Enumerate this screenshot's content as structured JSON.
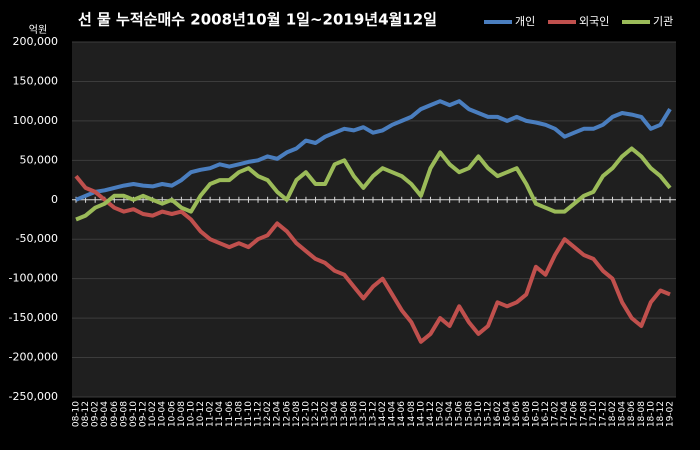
{
  "chart_data": {
    "type": "line",
    "title": "선 물  누적순매수 2008년10월 1일~2019년4월12일",
    "y_unit": "억원",
    "categories": [
      "08-10",
      "08-12",
      "09-02",
      "09-04",
      "09-06",
      "09-08",
      "09-10",
      "09-12",
      "10-02",
      "10-04",
      "10-06",
      "10-08",
      "10-10",
      "10-12",
      "11-02",
      "11-04",
      "11-06",
      "11-08",
      "11-10",
      "11-12",
      "12-02",
      "12-04",
      "12-06",
      "12-08",
      "12-10",
      "12-12",
      "13-02",
      "13-04",
      "13-06",
      "13-08",
      "13-10",
      "13-12",
      "14-02",
      "14-04",
      "14-06",
      "14-08",
      "14-10",
      "14-12",
      "15-02",
      "15-04",
      "15-06",
      "15-08",
      "15-10",
      "15-12",
      "16-02",
      "16-04",
      "16-06",
      "16-08",
      "16-10",
      "16-12",
      "17-02",
      "17-04",
      "17-06",
      "17-08",
      "17-10",
      "17-12",
      "18-02",
      "18-04",
      "18-06",
      "18-08",
      "18-10",
      "18-12",
      "19-02"
    ],
    "series": [
      {
        "name": "개인",
        "color": "#4a7ebf",
        "values": [
          0,
          5000,
          10000,
          12000,
          15000,
          18000,
          20000,
          18000,
          17000,
          20000,
          18000,
          25000,
          35000,
          38000,
          40000,
          45000,
          42000,
          45000,
          48000,
          50000,
          55000,
          52000,
          60000,
          65000,
          75000,
          72000,
          80000,
          85000,
          90000,
          88000,
          92000,
          85000,
          88000,
          95000,
          100000,
          105000,
          115000,
          120000,
          125000,
          120000,
          125000,
          115000,
          110000,
          105000,
          105000,
          100000,
          105000,
          100000,
          98000,
          95000,
          90000,
          80000,
          85000,
          90000,
          90000,
          95000,
          105000,
          110000,
          108000,
          105000,
          90000,
          95000,
          115000
        ]
      },
      {
        "name": "외국인",
        "color": "#c0504d",
        "values": [
          30000,
          15000,
          10000,
          0,
          -10000,
          -15000,
          -12000,
          -18000,
          -20000,
          -15000,
          -18000,
          -15000,
          -25000,
          -40000,
          -50000,
          -55000,
          -60000,
          -55000,
          -60000,
          -50000,
          -45000,
          -30000,
          -40000,
          -55000,
          -65000,
          -75000,
          -80000,
          -90000,
          -95000,
          -110000,
          -125000,
          -110000,
          -100000,
          -120000,
          -140000,
          -155000,
          -180000,
          -170000,
          -150000,
          -160000,
          -135000,
          -155000,
          -170000,
          -160000,
          -130000,
          -135000,
          -130000,
          -120000,
          -85000,
          -95000,
          -70000,
          -50000,
          -60000,
          -70000,
          -75000,
          -90000,
          -100000,
          -130000,
          -150000,
          -160000,
          -130000,
          -115000,
          -120000
        ]
      },
      {
        "name": "기관",
        "color": "#9bbb59",
        "values": [
          -25000,
          -20000,
          -10000,
          -5000,
          5000,
          5000,
          0,
          5000,
          0,
          -5000,
          0,
          -10000,
          -15000,
          5000,
          20000,
          25000,
          25000,
          35000,
          40000,
          30000,
          25000,
          10000,
          0,
          25000,
          35000,
          20000,
          20000,
          45000,
          50000,
          30000,
          15000,
          30000,
          40000,
          35000,
          30000,
          20000,
          5000,
          40000,
          60000,
          45000,
          35000,
          40000,
          55000,
          40000,
          30000,
          35000,
          40000,
          20000,
          -5000,
          -10000,
          -15000,
          -15000,
          -5000,
          5000,
          10000,
          30000,
          40000,
          55000,
          65000,
          55000,
          40000,
          30000,
          15000
        ]
      }
    ],
    "ylim": [
      -250000,
      200000
    ],
    "yticks": [
      {
        "value": -250000,
        "label": "-250,000"
      },
      {
        "value": -200000,
        "label": "-200,000"
      },
      {
        "value": -150000,
        "label": "-150,000"
      },
      {
        "value": -100000,
        "label": "-100,000"
      },
      {
        "value": -50000,
        "label": "-50,000"
      },
      0,
      {
        "value": 50000,
        "label": "50,000"
      },
      {
        "value": 100000,
        "label": "100,000"
      },
      {
        "value": 150000,
        "label": "150,000"
      },
      {
        "value": 200000,
        "label": "200,000"
      }
    ],
    "grid": true,
    "legend": "top-right"
  }
}
